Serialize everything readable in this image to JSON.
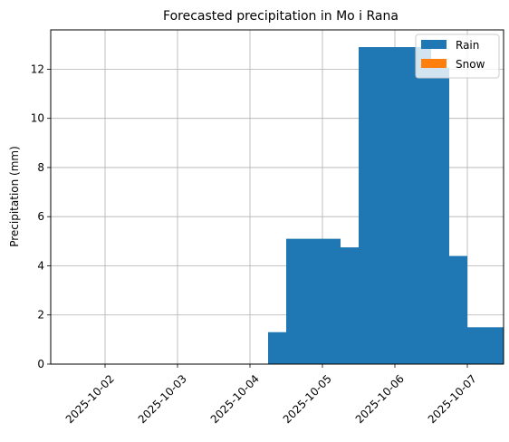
{
  "chart_data": {
    "type": "bar",
    "title": "Forecasted precipitation in Mo i Rana",
    "xlabel": "",
    "ylabel": "Precipitation (mm)",
    "x_start": "2025-10-01T06:00",
    "x_end": "2025-10-07T12:00",
    "x_ticks": [
      "2025-10-02",
      "2025-10-03",
      "2025-10-04",
      "2025-10-05",
      "2025-10-06",
      "2025-10-07"
    ],
    "ylim": [
      0,
      13.6
    ],
    "y_ticks": [
      0,
      2,
      4,
      6,
      8,
      10,
      12
    ],
    "grid": true,
    "legend_position": "top-right",
    "series": [
      {
        "name": "Rain",
        "color": "#1f77b4",
        "bars": [
          {
            "start": "2025-10-04T06:00",
            "end": "2025-10-04T12:00",
            "value": 1.3
          },
          {
            "start": "2025-10-04T12:00",
            "end": "2025-10-05T06:00",
            "value": 5.1
          },
          {
            "start": "2025-10-05T06:00",
            "end": "2025-10-05T12:00",
            "value": 4.75
          },
          {
            "start": "2025-10-05T12:00",
            "end": "2025-10-06T12:00",
            "value": 12.9
          },
          {
            "start": "2025-10-06T12:00",
            "end": "2025-10-06T18:00",
            "value": 12.05
          },
          {
            "start": "2025-10-06T18:00",
            "end": "2025-10-07T00:00",
            "value": 4.4
          },
          {
            "start": "2025-10-07T00:00",
            "end": "2025-10-07T12:00",
            "value": 1.5
          }
        ]
      },
      {
        "name": "Snow",
        "color": "#ff7f0e",
        "bars": []
      }
    ]
  }
}
